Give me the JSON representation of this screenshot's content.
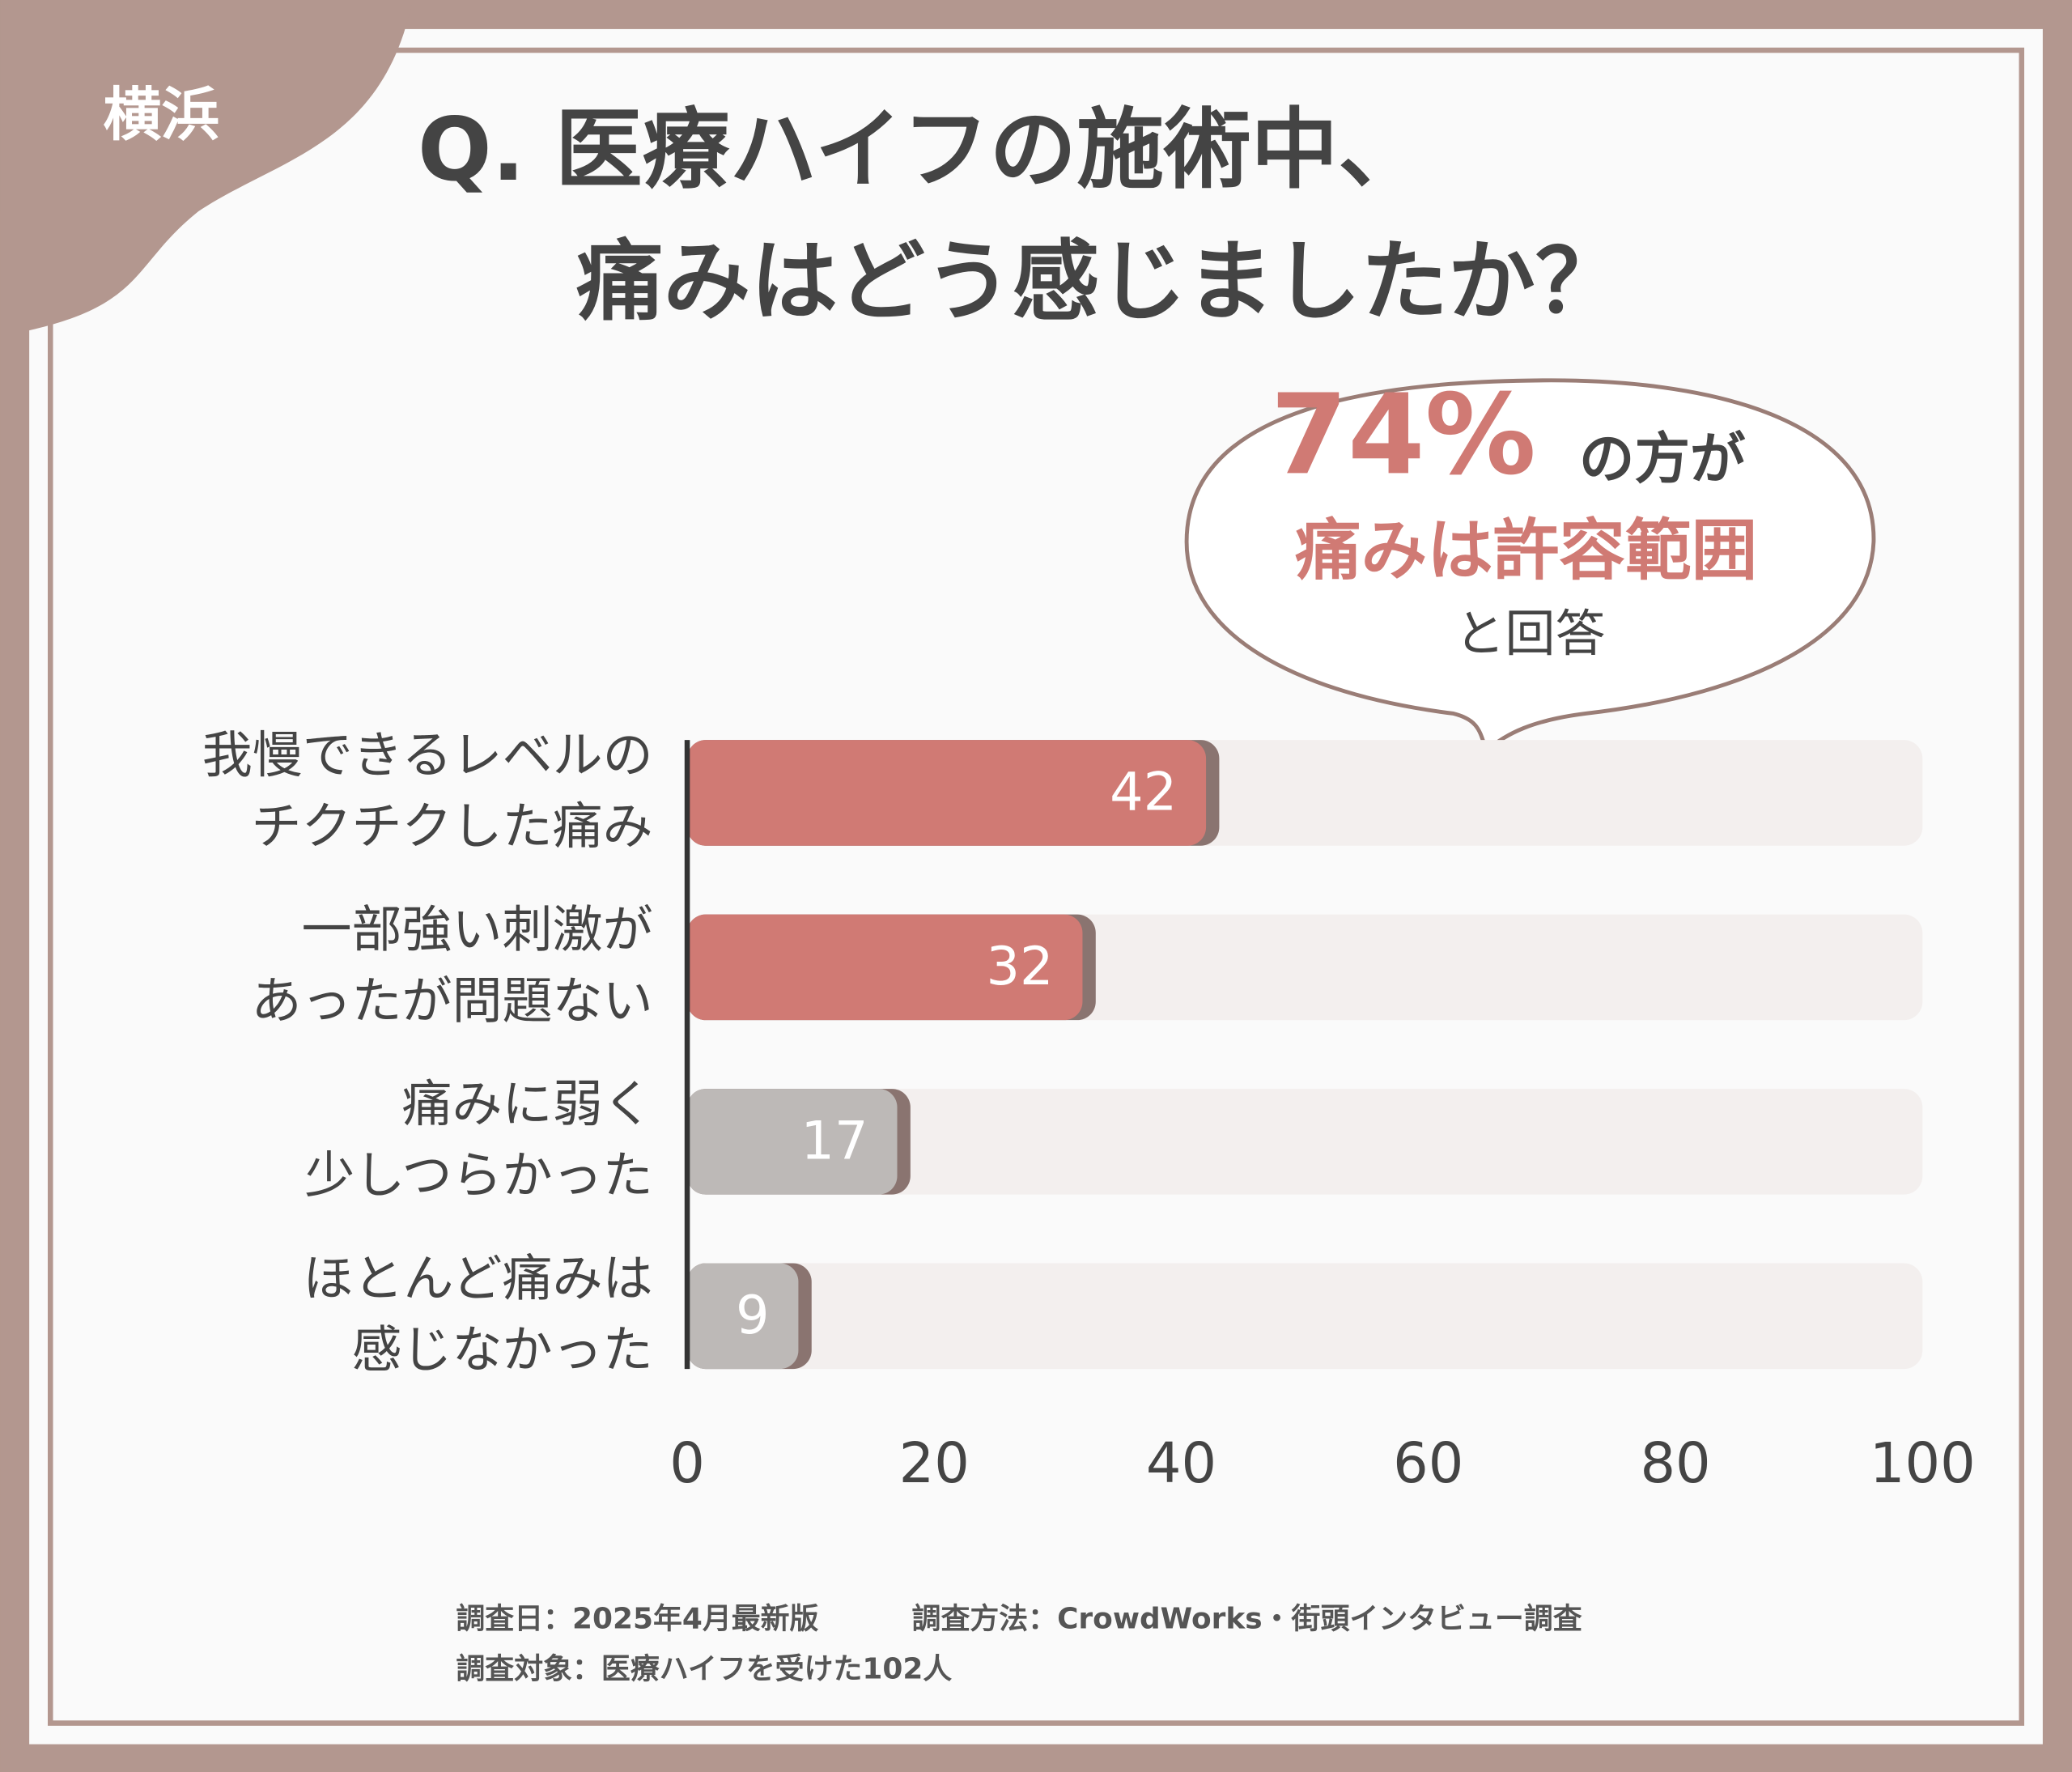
{
  "corner_label": "横浜",
  "title_lines": [
    "Q. 医療ハイフの施術中、",
    "痛みはどう感じましたか？"
  ],
  "callout": {
    "highlight": "74%",
    "line1_suffix": "の方が",
    "line2": "痛みは許容範囲",
    "line3": "と回答"
  },
  "notes": [
    "調査日：2025年4月最新版",
    "調査方法：CrowdWorks・街頭インタビュー調査",
    "調査対象：医療ハイフを受けた102人"
  ],
  "chart_data": {
    "type": "hbar",
    "categories": [
      [
        "我慢できるレベルの",
        "チクチクした痛み"
      ],
      [
        "一部強い刺激が",
        "あったが問題ない"
      ],
      [
        "痛みに弱く",
        "少しつらかった"
      ],
      [
        "ほとんど痛みは",
        "感じなかった"
      ]
    ],
    "values": [
      42,
      32,
      17,
      9
    ],
    "colors": [
      "#d07a74",
      "#d07a74",
      "#bdb9b7",
      "#bdb9b7"
    ],
    "xlim": [
      0,
      100
    ],
    "xticks": [
      0,
      20,
      40,
      60,
      80,
      100
    ]
  }
}
